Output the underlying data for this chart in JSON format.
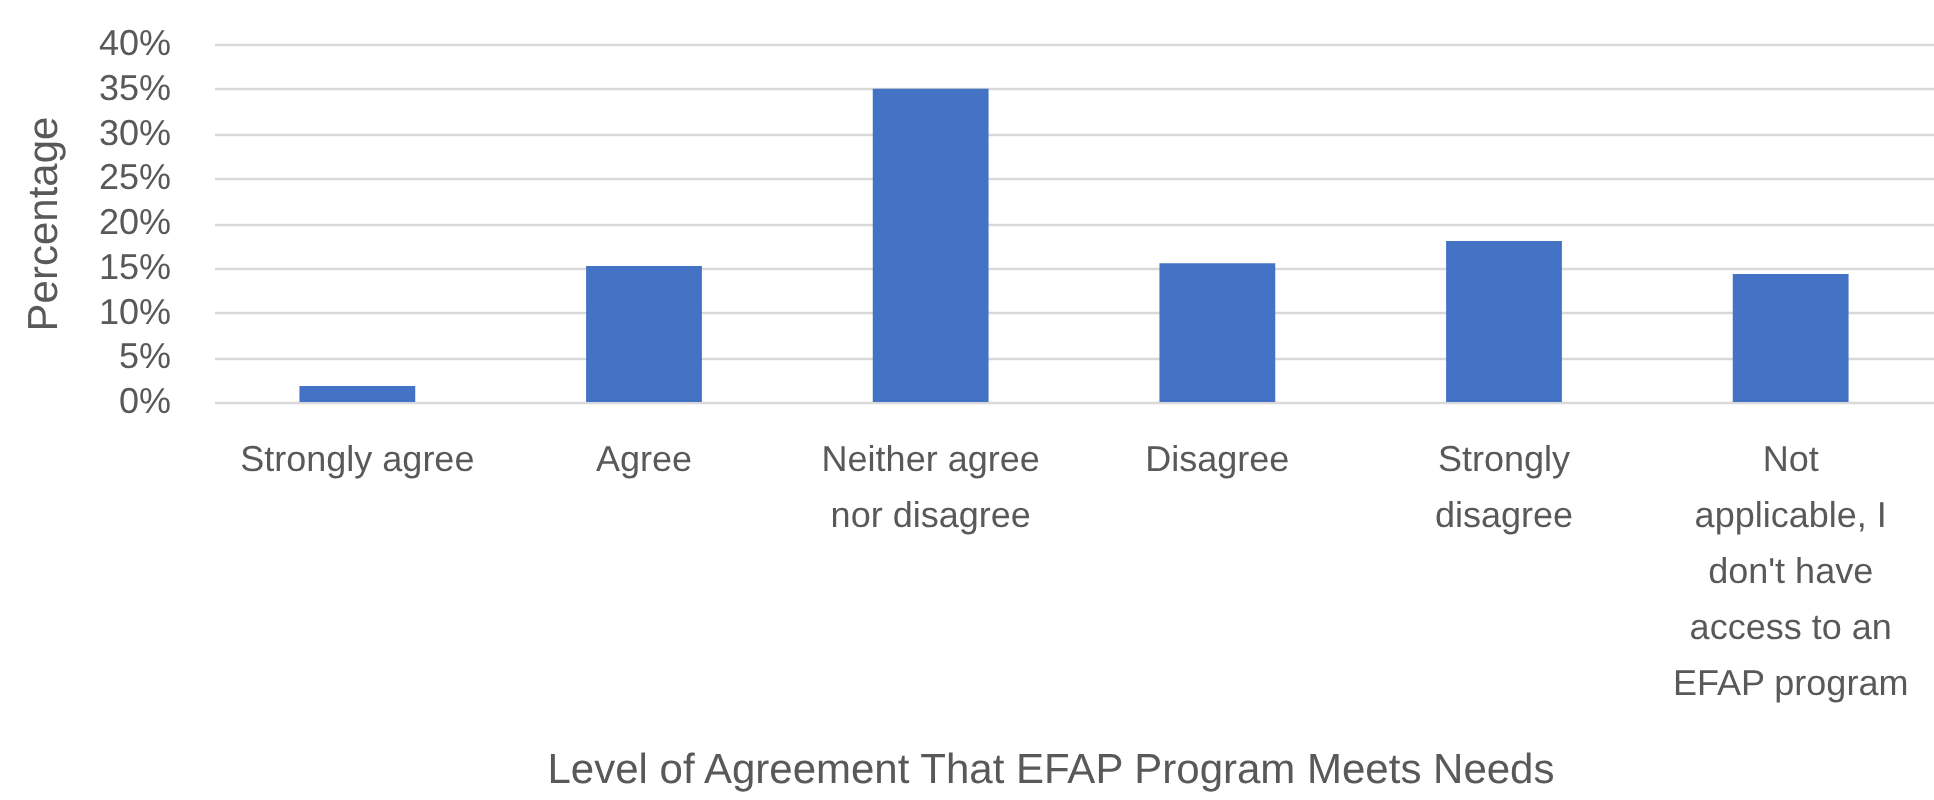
{
  "chart_data": {
    "type": "bar",
    "xlabel": "Level of Agreement That EFAP Program Meets Needs",
    "ylabel": "Percentage",
    "categories": [
      "Strongly agree",
      "Agree",
      "Neither agree nor disagree",
      "Disagree",
      "Strongly disagree",
      "Not applicable, I don't have access to an EFAP program"
    ],
    "values": [
      1.8,
      15.2,
      35,
      15.5,
      18,
      14.3
    ],
    "color": "#4472c4",
    "ylim": [
      0,
      40
    ],
    "yticks": [
      {
        "value": 0,
        "label": "0%"
      },
      {
        "value": 5,
        "label": "5%"
      },
      {
        "value": 10,
        "label": "10%"
      },
      {
        "value": 15,
        "label": "15%"
      },
      {
        "value": 20,
        "label": "20%"
      },
      {
        "value": 25,
        "label": "25%"
      },
      {
        "value": 30,
        "label": "30%"
      },
      {
        "value": 35,
        "label": "35%"
      },
      {
        "value": 40,
        "label": "40%"
      }
    ],
    "grid": "y"
  }
}
